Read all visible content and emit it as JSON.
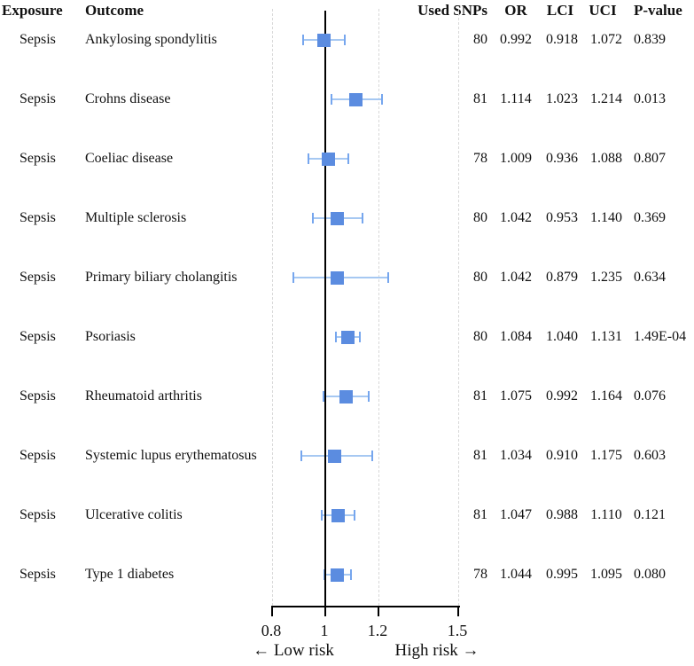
{
  "table": {
    "headers": {
      "exposure": "Exposure",
      "outcome": "Outcome",
      "snps": "Used SNPs",
      "or": "OR",
      "lci": "LCI",
      "uci": "UCI",
      "p": "P-value"
    }
  },
  "chart_data": {
    "type": "forest",
    "x_axis": {
      "scale": "linear",
      "range": [
        0.8,
        1.5
      ],
      "tick_labels": [
        "0.8",
        "1",
        "1.2",
        "1.5"
      ],
      "tick_values": [
        0.8,
        1.0,
        1.2,
        1.5
      ],
      "reference_line": 1.0,
      "dashed_gridlines": [
        0.8,
        1.2,
        1.5
      ],
      "grid": "dashed-vertical"
    },
    "footer": {
      "left_label": "← Low risk",
      "right_label": "High risk →"
    },
    "rows": [
      {
        "exposure": "Sepsis",
        "outcome": "Ankylosing spondylitis",
        "snps": "80",
        "or": "0.992",
        "lci": "0.918",
        "uci": "1.072",
        "p": "0.839"
      },
      {
        "exposure": "Sepsis",
        "outcome": "Crohns disease",
        "snps": "81",
        "or": "1.114",
        "lci": "1.023",
        "uci": "1.214",
        "p": "0.013"
      },
      {
        "exposure": "Sepsis",
        "outcome": "Coeliac disease",
        "snps": "78",
        "or": "1.009",
        "lci": "0.936",
        "uci": "1.088",
        "p": "0.807"
      },
      {
        "exposure": "Sepsis",
        "outcome": "Multiple sclerosis",
        "snps": "80",
        "or": "1.042",
        "lci": "0.953",
        "uci": "1.140",
        "p": "0.369"
      },
      {
        "exposure": "Sepsis",
        "outcome": "Primary biliary cholangitis",
        "snps": "80",
        "or": "1.042",
        "lci": "0.879",
        "uci": "1.235",
        "p": "0.634"
      },
      {
        "exposure": "Sepsis",
        "outcome": "Psoriasis",
        "snps": "80",
        "or": "1.084",
        "lci": "1.040",
        "uci": "1.131",
        "p": "1.49E-04"
      },
      {
        "exposure": "Sepsis",
        "outcome": "Rheumatoid arthritis",
        "snps": "81",
        "or": "1.075",
        "lci": "0.992",
        "uci": "1.164",
        "p": "0.076"
      },
      {
        "exposure": "Sepsis",
        "outcome": "Systemic lupus erythematosus",
        "snps": "81",
        "or": "1.034",
        "lci": "0.910",
        "uci": "1.175",
        "p": "0.603"
      },
      {
        "exposure": "Sepsis",
        "outcome": "Ulcerative colitis",
        "snps": "81",
        "or": "1.047",
        "lci": "0.988",
        "uci": "1.110",
        "p": "0.121"
      },
      {
        "exposure": "Sepsis",
        "outcome": "Type 1 diabetes",
        "snps": "78",
        "or": "1.044",
        "lci": "0.995",
        "uci": "1.095",
        "p": "0.080"
      }
    ]
  },
  "colors": {
    "marker_square": "#5b8ce0",
    "whisker_line": "#a6c8f2",
    "whisker_cap": "#76a6ee",
    "reference_line": "#000000",
    "axis": "#000000",
    "gridline": "#d8d8d8",
    "text": "#111111",
    "background": "#ffffff"
  }
}
